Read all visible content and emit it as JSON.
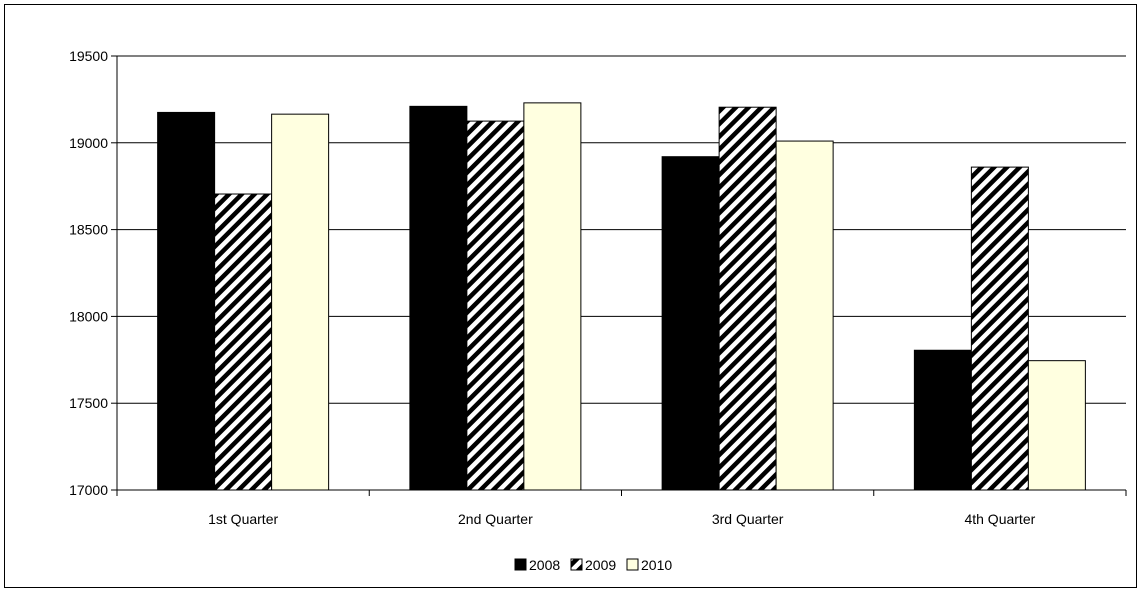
{
  "chart_data": {
    "type": "bar",
    "title": "",
    "xlabel": "",
    "ylabel": "",
    "categories": [
      "1st Quarter",
      "2nd Quarter",
      "3rd Quarter",
      "4th Quarter"
    ],
    "series": [
      {
        "name": "2008",
        "values": [
          19175,
          19210,
          18920,
          17805
        ],
        "color": "#000000",
        "pattern": "solid"
      },
      {
        "name": "2009",
        "values": [
          18705,
          19125,
          19205,
          18860
        ],
        "color": "#ffffff",
        "pattern": "diagonal-hatch"
      },
      {
        "name": "2010",
        "values": [
          19165,
          19230,
          19010,
          17745
        ],
        "color": "#ffffe0",
        "pattern": "solid"
      }
    ],
    "ylim": [
      17000,
      19500
    ],
    "yticks": [
      17000,
      17500,
      18000,
      18500,
      19000,
      19500
    ],
    "grid": true,
    "legend_position": "bottom"
  }
}
